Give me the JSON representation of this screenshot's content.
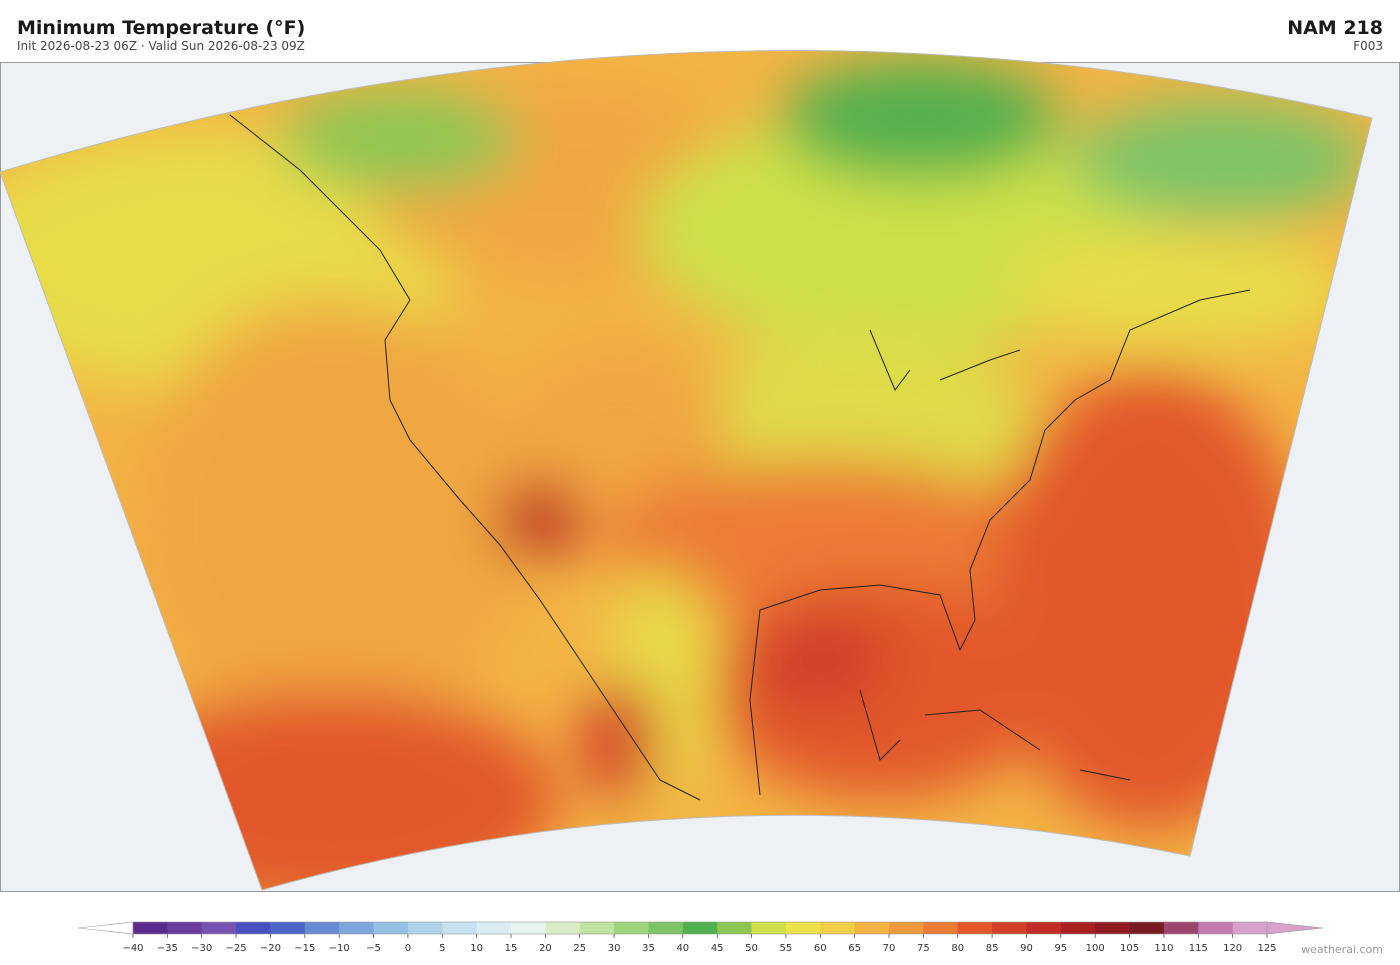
{
  "header": {
    "title": "Minimum Temperature  (°F)",
    "subtitle": "Init 2026-08-23 06Z  ·  Valid Sun 2026-08-23 09Z",
    "model": "NAM  218",
    "forecast_hour": "F003"
  },
  "colorbar": {
    "ticks": [
      {
        "value": -40,
        "label": "−40"
      },
      {
        "value": -35,
        "label": "−35"
      },
      {
        "value": -30,
        "label": "−30"
      },
      {
        "value": -25,
        "label": "−25"
      },
      {
        "value": -20,
        "label": "−20"
      },
      {
        "value": -15,
        "label": "−15"
      },
      {
        "value": -10,
        "label": "−10"
      },
      {
        "value": -5,
        "label": "−5"
      },
      0,
      5,
      10,
      15,
      20,
      25,
      30,
      35,
      40,
      45,
      50,
      55,
      60,
      65,
      70,
      75,
      80,
      85,
      90,
      95,
      100,
      105,
      110,
      115,
      120,
      125
    ],
    "colors": [
      "#5b2a8c",
      "#6a3d9a",
      "#7552b0",
      "#4a4fbf",
      "#4f66c9",
      "#6a8ad4",
      "#7ea6dc",
      "#95c0e4",
      "#aed2ea",
      "#c4e2ef",
      "#d8eef3",
      "#e6f4ee",
      "#d8edc6",
      "#bfe3a0",
      "#9fd47e",
      "#7ec466",
      "#52b04e",
      "#8cc652",
      "#cde04a",
      "#ece24a",
      "#f3cc48",
      "#f3b445",
      "#f09a3e",
      "#ec7c35",
      "#e2582a",
      "#d3402a",
      "#c02c26",
      "#a81f22",
      "#8f1a1f",
      "#7a1a22",
      "#9c466e",
      "#c479ae",
      "#d8a0cc"
    ],
    "under_color": "#ffffff",
    "over_color": "#d8a0cc"
  },
  "footer": {
    "watermark": "weatherai.com"
  }
}
